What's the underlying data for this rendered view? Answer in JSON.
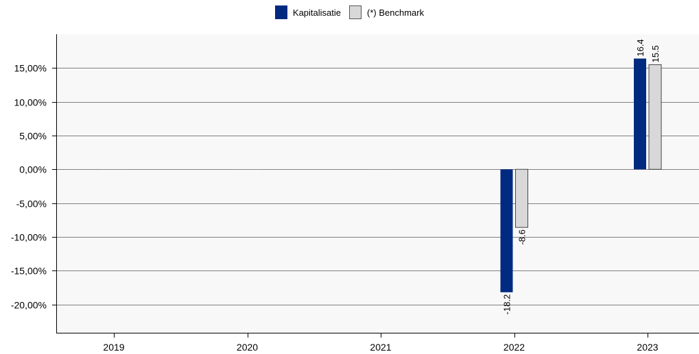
{
  "chart_data": {
    "type": "bar",
    "categories": [
      "2019",
      "2020",
      "2021",
      "2022",
      "2023"
    ],
    "series": [
      {
        "name": "Kapitalisatie",
        "values": [
          0,
          0,
          0,
          -18.2,
          16.4
        ],
        "labels": [
          "",
          "",
          "",
          "-18.2",
          "16.4"
        ],
        "color": "#002a7f"
      },
      {
        "name": "(*) Benchmark",
        "values": [
          0,
          0,
          0,
          -8.6,
          15.5
        ],
        "labels": [
          "",
          "",
          "",
          "-8.6",
          "15.5"
        ],
        "color": "#d8d8d8"
      }
    ],
    "yticks": [
      15,
      10,
      5,
      0,
      -5,
      -10,
      -15,
      -20
    ],
    "ytick_labels": [
      "15,00%",
      "10,00%",
      "5,00%",
      "0,00%",
      "-5,00%",
      "-10,00%",
      "-15,00%",
      "-20,00%"
    ],
    "ylim": [
      -24.2,
      20
    ],
    "grid": true,
    "legend_position": "top-center",
    "plot_background": "#f8f8f8",
    "grid_color": "#808080"
  }
}
